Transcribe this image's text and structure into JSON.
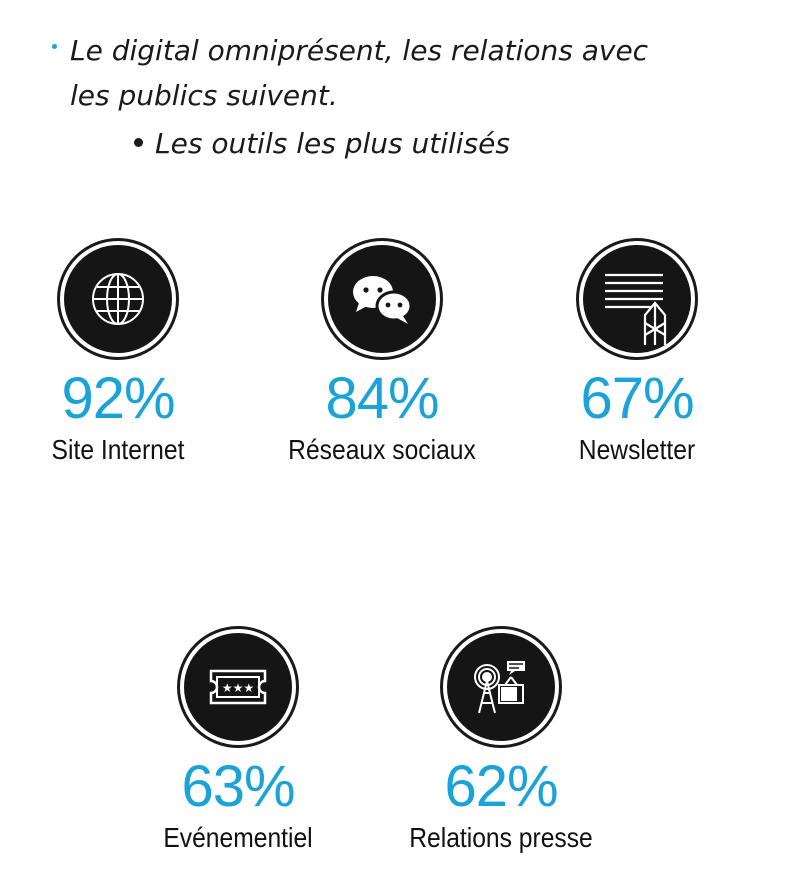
{
  "heading": {
    "line1": "Le digital omniprésent, les relations avec",
    "line2": "les publics suivent.",
    "sub": "Les outils les plus utilisés",
    "accent_color": "#1aa3d9"
  },
  "stats": [
    {
      "icon": "globe-icon",
      "percent": "92%",
      "label": "Site Internet"
    },
    {
      "icon": "chat-bubbles-icon",
      "percent": "84%",
      "label": "Réseaux sociaux"
    },
    {
      "icon": "newsletter-icon",
      "percent": "67%",
      "label": "Newsletter"
    },
    {
      "icon": "ticket-icon",
      "percent": "63%",
      "label": "Evénementiel"
    },
    {
      "icon": "broadcast-tv-icon",
      "percent": "62%",
      "label": "Relations presse"
    }
  ]
}
